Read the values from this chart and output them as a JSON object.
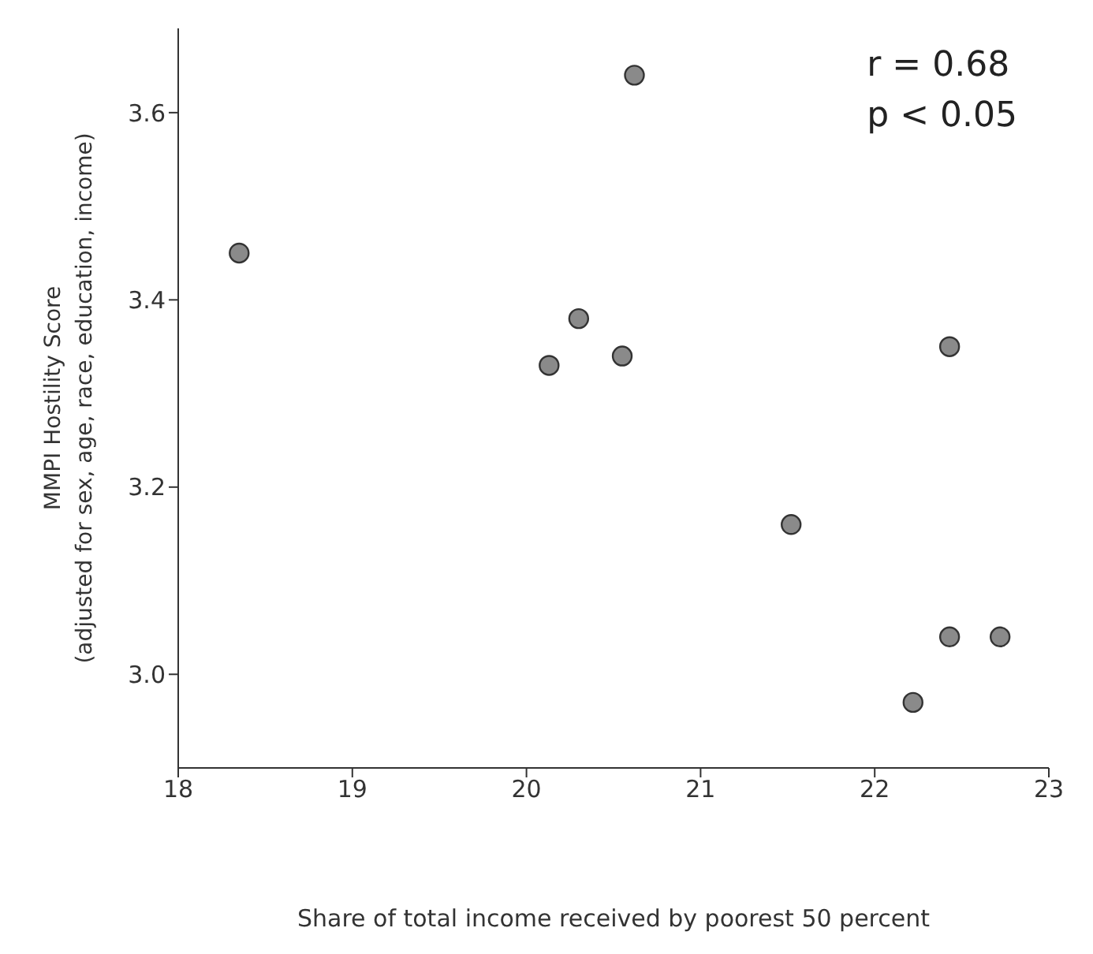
{
  "chart_data": {
    "type": "scatter",
    "xlabel": "Share of total income received by poorest 50 percent",
    "ylabel": "MMPI Hostility Score\n(adjusted for sex, age, race, education, income)",
    "x": [
      18.35,
      20.13,
      20.3,
      20.55,
      20.62,
      21.52,
      22.22,
      22.43,
      22.43,
      22.72
    ],
    "values": [
      3.45,
      3.33,
      3.38,
      3.34,
      3.64,
      3.16,
      2.97,
      3.35,
      3.04,
      3.04
    ],
    "color": "#8a8a8a",
    "marker": "circle",
    "xlim": [
      18,
      23
    ],
    "xticks": [
      18,
      19,
      20,
      21,
      22,
      23
    ],
    "ylim": [
      2.9,
      3.69
    ],
    "yticks": [
      {
        "value": 3,
        "label": "3.0"
      },
      3.2,
      3.4,
      3.6
    ],
    "grid": false,
    "annotations": [
      "r = 0.68",
      "p < 0.05"
    ]
  }
}
